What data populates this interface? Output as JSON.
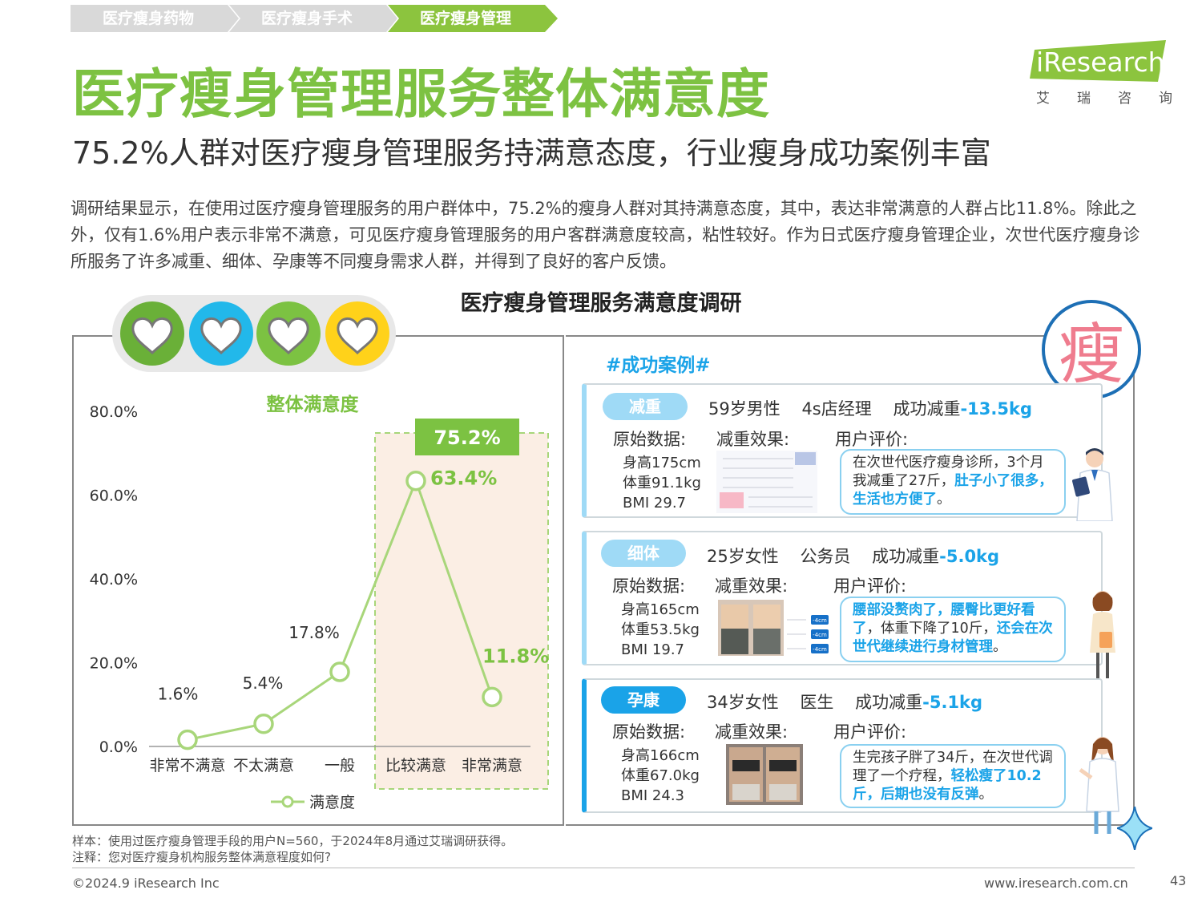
{
  "breadcrumb": [
    "医疗瘦身药物",
    "医疗瘦身手术",
    "医疗瘦身管理"
  ],
  "title": "医疗瘦身管理服务整体满意度",
  "subtitle": "75.2%人群对医疗瘦身管理服务持满意态度，行业瘦身成功案例丰富",
  "paragraph": "调研结果显示，在使用过医疗瘦身管理服务的用户群体中，75.2%的瘦身人群对其持满意态度，其中，表达非常满意的人群占比11.8%。除此之外，仅有1.6%用户表示非常不满意，可见医疗瘦身管理服务的用户客群满意度较高，粘性较好。作为日式医疗瘦身管理企业，次世代医疗瘦身诊所服务了许多减重、细体、孕康等不同瘦身需求人群，并得到了良好的客户反馈。",
  "logo": {
    "brand": "iResearch",
    "sub": [
      "艾",
      "瑞",
      "咨",
      "询"
    ]
  },
  "figure_title": "医疗瘦身管理服务满意度调研",
  "chart_data": {
    "type": "line",
    "title": "整体满意度",
    "categories": [
      "非常不满意",
      "不太满意",
      "一般",
      "比较满意",
      "非常满意"
    ],
    "series": [
      {
        "name": "满意度",
        "values": [
          1.6,
          5.4,
          17.8,
          63.4,
          11.8
        ]
      }
    ],
    "data_labels": [
      "1.6%",
      "5.4%",
      "17.8%",
      "63.4%",
      "11.8%"
    ],
    "y_ticks": [
      "0.0%",
      "20.0%",
      "40.0%",
      "60.0%",
      "80.0%"
    ],
    "ylim": [
      0,
      80
    ],
    "highlight": {
      "categories": [
        "比较满意",
        "非常满意"
      ],
      "label": "75.2%"
    },
    "legend": "bottom",
    "color": "#a8d67a"
  },
  "stamp_char": "瘦",
  "cases_heading": "#成功案例#",
  "cases": [
    {
      "tag": "减重",
      "person": "59岁男性",
      "job": "4s店经理",
      "result_prefix": "成功减重",
      "result": "-13.5kg",
      "raw_label": "原始数据:",
      "effect_label": "减重效果:",
      "review_label": "用户评价:",
      "raw": [
        "身高175cm",
        "体重91.1kg",
        "BMI 29.7"
      ],
      "review_normal": "在次世代医疗瘦身诊所，3个月我减重了27斤，",
      "review_bold": "肚子小了很多，生活也方便了",
      "review_tail": "。"
    },
    {
      "tag": "细体",
      "person": "25岁女性",
      "job": "公务员",
      "result_prefix": "成功减重",
      "result": "-5.0kg",
      "raw_label": "原始数据:",
      "effect_label": "减重效果:",
      "review_label": "用户评价:",
      "raw": [
        "身高165cm",
        "体重53.5kg",
        "BMI 19.7"
      ],
      "review_bold": "腰部没赘肉了，腰臀比更好看了",
      "review_normal": "，体重下降了10斤，",
      "review_bold2": "还会在次世代继续进行身材管理",
      "review_tail": "。",
      "effect_marks": [
        "-4cm",
        "-4cm",
        "-4cm"
      ]
    },
    {
      "tag": "孕康",
      "person": "34岁女性",
      "job": "医生",
      "result_prefix": "成功减重",
      "result": "-5.1kg",
      "raw_label": "原始数据:",
      "effect_label": "减重效果:",
      "review_label": "用户评价:",
      "raw": [
        "身高166cm",
        "体重67.0kg",
        "BMI 24.3"
      ],
      "review_normal": "生完孩子胖了34斤，在次世代调理了一个疗程，",
      "review_bold": "轻松瘦了10.2斤，后期也没有反弹",
      "review_tail": "。"
    }
  ],
  "notes": {
    "sample": "样本：使用过医疗瘦身管理手段的用户N=560，于2024年8月通过艾瑞调研获得。",
    "note": "注释：您对医疗瘦身机构服务整体满意程度如何?"
  },
  "footer": {
    "copyright": "©2024.9 iResearch Inc",
    "url": "www.iresearch.com.cn",
    "page": "43"
  }
}
